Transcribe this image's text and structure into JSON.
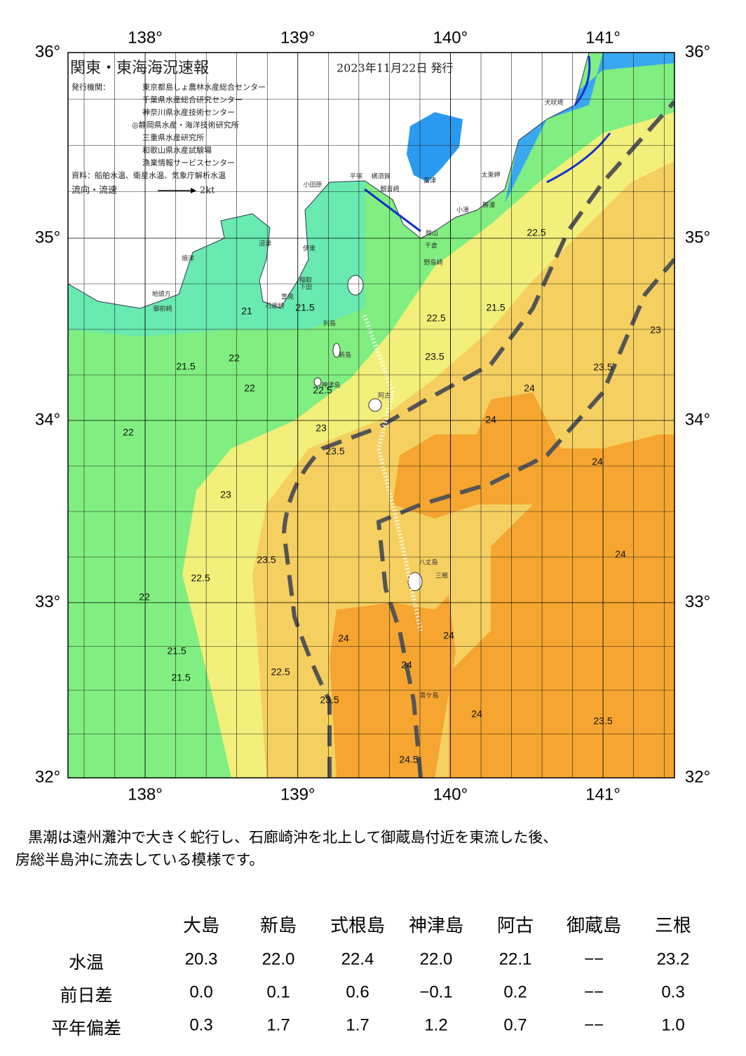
{
  "map": {
    "title": "関東・東海海況速報",
    "date": "2023年11月22日 発行",
    "issuer_label": "発行機関：",
    "issuers": [
      "東京都島しょ農林水産総合センター",
      "千葉県水産総合研究センター",
      "神奈川県水産技術センター",
      "◎静岡県水産・海洋技術研究所",
      "三重県水産研究所",
      "和歌山県水産試験場",
      "漁業情報サービスセンター"
    ],
    "source": "資料：船舶水温、衛星水温、気象庁解析水温",
    "flow_label": "流向・流速",
    "flow_scale": "2kt",
    "lon_ticks": [
      {
        "value": 138,
        "label": "138°"
      },
      {
        "value": 139,
        "label": "139°"
      },
      {
        "value": 140,
        "label": "140°"
      },
      {
        "value": 141,
        "label": "141°"
      }
    ],
    "lat_ticks": [
      {
        "value": 36,
        "label": "36°"
      },
      {
        "value": 35,
        "label": "35°"
      },
      {
        "value": 34,
        "label": "34°"
      },
      {
        "value": 33,
        "label": "33°"
      },
      {
        "value": 32,
        "label": "32°"
      }
    ],
    "contour_labels": [
      "21",
      "21.5",
      "22",
      "22",
      "22.5",
      "23",
      "23.5",
      "23.5",
      "24",
      "24",
      "24",
      "24",
      "23.5",
      "22.5",
      "22",
      "21.5",
      "21.5",
      "21.5",
      "22.5",
      "23",
      "23.5",
      "24.5",
      "24",
      "24",
      "23.5",
      "22.5",
      "22.5",
      "21.5",
      "22",
      "23.5",
      "24",
      "24",
      "23"
    ],
    "place_names": [
      "犬吠埼",
      "太東岬",
      "勝浦",
      "小湊",
      "富津",
      "横須賀",
      "観音崎",
      "平塚",
      "小田原",
      "館山",
      "千倉",
      "野島崎",
      "伊東",
      "稲取",
      "下田",
      "雲見",
      "石廊崎",
      "沼津",
      "焼津",
      "地頭方",
      "御前崎",
      "利島",
      "新島",
      "神津島",
      "阿古",
      "八丈島",
      "三根",
      "青ケ島"
    ]
  },
  "note": [
    "黒潮は遠州灘沖で大きく蛇行し、石廊崎沖を北上して御蔵島付近を東流した後、",
    "房総半島沖に流去している模様です。"
  ],
  "table": {
    "columns": [
      "大島",
      "新島",
      "式根島",
      "神津島",
      "阿古",
      "御蔵島",
      "三根"
    ],
    "rows": [
      {
        "label": "水温",
        "values": [
          "20.3",
          "22.0",
          "22.4",
          "22.0",
          "22.1",
          "−−",
          "23.2"
        ]
      },
      {
        "label": "前日差",
        "values": [
          "0.0",
          "0.1",
          "0.6",
          "−0.1",
          "0.2",
          "−−",
          "0.3"
        ]
      },
      {
        "label": "平年偏差",
        "values": [
          "0.3",
          "1.7",
          "1.7",
          "1.2",
          "0.7",
          "−−",
          "1.0"
        ]
      }
    ]
  }
}
